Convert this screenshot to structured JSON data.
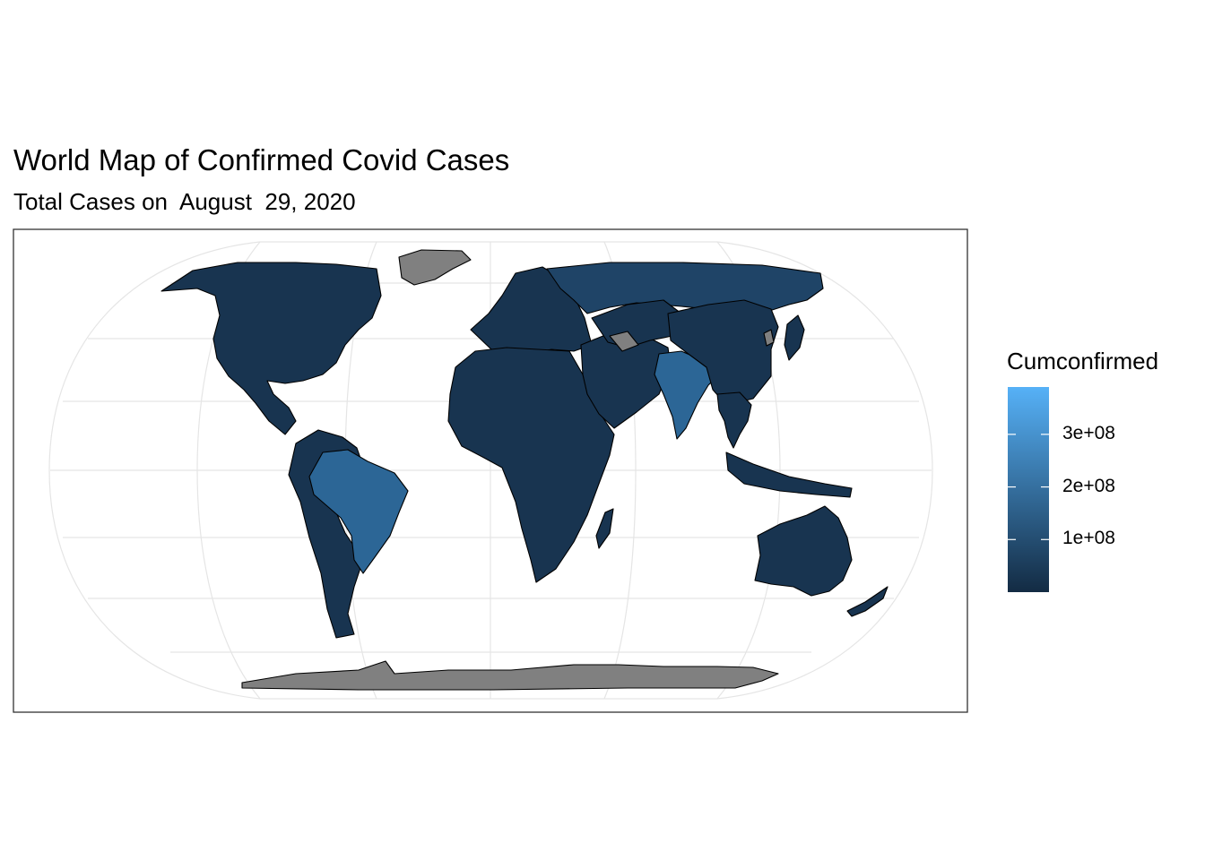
{
  "title": "World Map of Confirmed Covid Cases",
  "subtitle": "Total Cases on  August  29, 2020",
  "legend": {
    "title": "Cumconfirmed",
    "scale_low_color": "#132B43",
    "scale_high_color": "#56B1F7",
    "ticks": [
      {
        "label": "3e+08",
        "value": 300000000
      },
      {
        "label": "2e+08",
        "value": 200000000
      },
      {
        "label": "1e+08",
        "value": 100000000
      }
    ],
    "max_value": 390000000
  },
  "map": {
    "projection": "Eckert-style world projection",
    "grid": true,
    "colors": {
      "no_data": "#808080",
      "borders": "#000000",
      "grid": "#e5e5e5",
      "panel_border": "#333333"
    },
    "regions": [
      {
        "name": "North America",
        "level": "low"
      },
      {
        "name": "Brazil",
        "level": "high"
      },
      {
        "name": "South America",
        "level": "low"
      },
      {
        "name": "Europe",
        "level": "low"
      },
      {
        "name": "Russia",
        "level": "mid"
      },
      {
        "name": "Africa",
        "level": "low"
      },
      {
        "name": "Middle East & Central Asia",
        "level": "low"
      },
      {
        "name": "India",
        "level": "high"
      },
      {
        "name": "China & East Asia",
        "level": "low"
      },
      {
        "name": "Southeast Asia",
        "level": "low"
      },
      {
        "name": "Australia",
        "level": "low"
      },
      {
        "name": "Greenland",
        "level": "none"
      },
      {
        "name": "Antarctica",
        "level": "none"
      }
    ]
  }
}
